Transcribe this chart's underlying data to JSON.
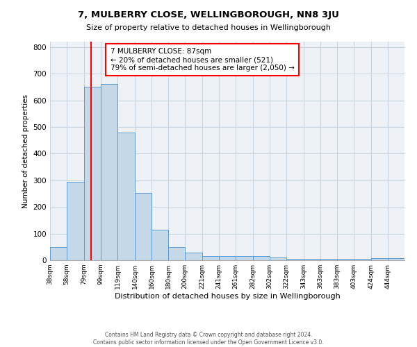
{
  "title": "7, MULBERRY CLOSE, WELLINGBOROUGH, NN8 3JU",
  "subtitle": "Size of property relative to detached houses in Wellingborough",
  "xlabel": "Distribution of detached houses by size in Wellingborough",
  "ylabel": "Number of detached properties",
  "bin_labels": [
    "38sqm",
    "58sqm",
    "79sqm",
    "99sqm",
    "119sqm",
    "140sqm",
    "160sqm",
    "180sqm",
    "200sqm",
    "221sqm",
    "241sqm",
    "261sqm",
    "282sqm",
    "302sqm",
    "322sqm",
    "343sqm",
    "363sqm",
    "383sqm",
    "403sqm",
    "424sqm",
    "444sqm"
  ],
  "bin_edges": [
    38,
    58,
    79,
    99,
    119,
    140,
    160,
    180,
    200,
    221,
    241,
    261,
    282,
    302,
    322,
    343,
    363,
    383,
    403,
    424,
    444
  ],
  "bar_heights": [
    50,
    295,
    650,
    660,
    478,
    252,
    115,
    50,
    28,
    15,
    15,
    15,
    15,
    10,
    5,
    5,
    5,
    5,
    5,
    8,
    8
  ],
  "bar_color": "#c5d8e8",
  "bar_edge_color": "#5b9bd5",
  "vline_x": 87,
  "vline_color": "red",
  "ylim": [
    0,
    820
  ],
  "yticks": [
    0,
    100,
    200,
    300,
    400,
    500,
    600,
    700,
    800
  ],
  "annotation_title": "7 MULBERRY CLOSE: 87sqm",
  "annotation_line1": "← 20% of detached houses are smaller (521)",
  "annotation_line2": "79% of semi-detached houses are larger (2,050) →",
  "box_color": "red",
  "footer1": "Contains HM Land Registry data © Crown copyright and database right 2024.",
  "footer2": "Contains public sector information licensed under the Open Government Licence v3.0.",
  "bg_color": "#eef2f7",
  "grid_color": "#c8d4e0"
}
